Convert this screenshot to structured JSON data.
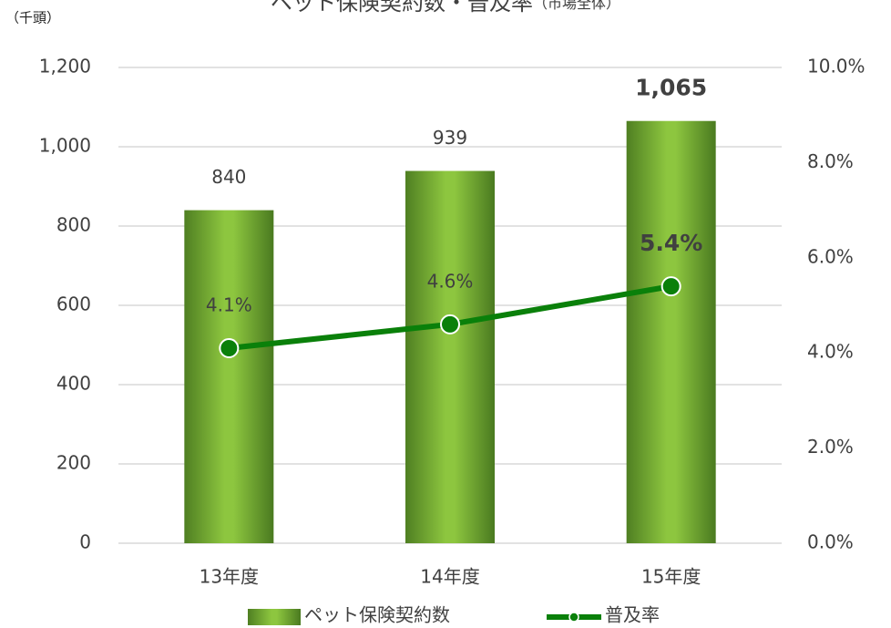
{
  "chart_data": {
    "type": "bar",
    "title": "ペット保険契約数・普及率",
    "subtitle": "（市場全体）",
    "y_unit_label": "（千頭）",
    "categories": [
      "13年度",
      "14年度",
      "15年度"
    ],
    "series": [
      {
        "name": "ペット保険契約数",
        "type": "bar",
        "color": "#8dc63f",
        "values": [
          840,
          939,
          1065
        ],
        "value_labels": [
          "840",
          "939",
          "1,065"
        ]
      },
      {
        "name": "普及率",
        "type": "line",
        "axis": "y2",
        "color": "#0a800a",
        "values": [
          4.1,
          4.6,
          5.4
        ],
        "value_labels": [
          "4.1%",
          "4.6%",
          "5.4%"
        ]
      }
    ],
    "ylim": [
      0,
      1200
    ],
    "yticks": [
      0,
      200,
      400,
      600,
      800,
      {
        "value": 1000,
        "label": "1,000"
      },
      {
        "value": 1200,
        "label": "1,200"
      }
    ],
    "y2lim": [
      0,
      10
    ],
    "y2ticks": [
      {
        "value": 0,
        "label": "0.0%"
      },
      {
        "value": 2,
        "label": "2.0%"
      },
      {
        "value": 4,
        "label": "4.0%"
      },
      {
        "value": 6,
        "label": "6.0%"
      },
      {
        "value": 8,
        "label": "8.0%"
      },
      {
        "value": 10,
        "label": "10.0%"
      }
    ],
    "grid": true
  }
}
